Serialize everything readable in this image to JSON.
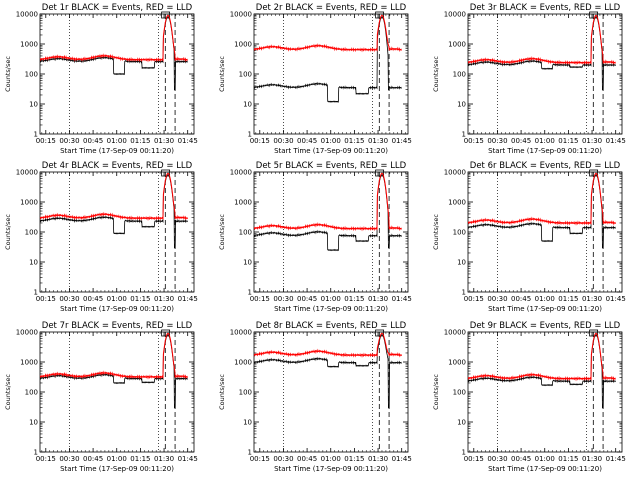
{
  "figure": {
    "bg": "#ffffff",
    "axis_color": "#000000",
    "events_color": "#000000",
    "lld_color": "#ff0000"
  },
  "chart_data": [
    {
      "type": "line",
      "title": "Det 1r  BLACK = Events, RED = LLD",
      "xlabel": "Start Time (17-Sep-09 00:11:20)",
      "ylabel": "Counts/sec",
      "xlim_min": [
        11.33,
        109.0
      ],
      "ylim": [
        1,
        10000
      ],
      "yscale": "log",
      "xtick_minutes": [
        15,
        30,
        45,
        60,
        75,
        90,
        105
      ],
      "xtick_labels": [
        "00:15",
        "00:30",
        "00:45",
        "01:00",
        "01:15",
        "01:30",
        "01:45"
      ],
      "ytick_values": [
        1,
        10,
        100,
        1000,
        10000
      ],
      "ytick_labels": [
        "1",
        "10",
        "100",
        "1000",
        "10000"
      ],
      "vlines_dotted_min": [
        30,
        86.5
      ],
      "vlines_dashed_min": [
        90.8,
        97
      ],
      "marker_box_min": 91,
      "marker_value": 10000,
      "series": [
        {
          "name": "Events",
          "baseline": 260,
          "dips": [
            [
              58,
              65,
              100
            ],
            [
              76,
              84,
              160
            ]
          ]
        },
        {
          "name": "LLD",
          "baseline": 300,
          "dips": []
        }
      ]
    },
    {
      "type": "line",
      "title": "Det 2r  BLACK = Events, RED = LLD",
      "xlabel": "Start Time (17-Sep-09 00:11:20)",
      "ylabel": "Counts/sec",
      "xlim_min": [
        11.33,
        109.0
      ],
      "ylim": [
        1,
        10000
      ],
      "yscale": "log",
      "xtick_minutes": [
        15,
        30,
        45,
        60,
        75,
        90,
        105
      ],
      "xtick_labels": [
        "00:15",
        "00:30",
        "00:45",
        "01:00",
        "01:15",
        "01:30",
        "01:45"
      ],
      "ytick_values": [
        1,
        10,
        100,
        1000,
        10000
      ],
      "ytick_labels": [
        "1",
        "10",
        "100",
        "1000",
        "10000"
      ],
      "vlines_dotted_min": [
        30,
        86.5
      ],
      "vlines_dashed_min": [
        90.8,
        97
      ],
      "marker_box_min": 91,
      "marker_value": 10000,
      "series": [
        {
          "name": "Events",
          "baseline": 35,
          "dips": [
            [
              58,
              65,
              12
            ],
            [
              76,
              84,
              22
            ]
          ]
        },
        {
          "name": "LLD",
          "baseline": 650,
          "dips": []
        }
      ]
    },
    {
      "type": "line",
      "title": "Det 3r  BLACK = Events, RED = LLD",
      "xlabel": "Start Time (17-Sep-09 00:11:20)",
      "ylabel": "Counts/sec",
      "xlim_min": [
        11.33,
        109.0
      ],
      "ylim": [
        1,
        10000
      ],
      "yscale": "log",
      "xtick_minutes": [
        15,
        30,
        45,
        60,
        75,
        90,
        105
      ],
      "xtick_labels": [
        "00:15",
        "00:30",
        "00:45",
        "01:00",
        "01:15",
        "01:30",
        "01:45"
      ],
      "ytick_values": [
        1,
        10,
        100,
        1000,
        10000
      ],
      "ytick_labels": [
        "1",
        "10",
        "100",
        "1000",
        "10000"
      ],
      "vlines_dotted_min": [
        30,
        86.5
      ],
      "vlines_dashed_min": [
        90.8,
        97
      ],
      "marker_box_min": 91,
      "marker_value": 10000,
      "series": [
        {
          "name": "Events",
          "baseline": 200,
          "dips": [
            [
              58,
              65,
              150
            ],
            [
              76,
              84,
              170
            ]
          ]
        },
        {
          "name": "LLD",
          "baseline": 240,
          "dips": []
        }
      ]
    },
    {
      "type": "line",
      "title": "Det 4r  BLACK = Events, RED = LLD",
      "xlabel": "Start Time (17-Sep-09 00:11:20)",
      "ylabel": "Counts/sec",
      "xlim_min": [
        11.33,
        109.0
      ],
      "ylim": [
        1,
        10000
      ],
      "yscale": "log",
      "xtick_minutes": [
        15,
        30,
        45,
        60,
        75,
        90,
        105
      ],
      "xtick_labels": [
        "00:15",
        "00:30",
        "00:45",
        "01:00",
        "01:15",
        "01:30",
        "01:45"
      ],
      "ytick_values": [
        1,
        10,
        100,
        1000,
        10000
      ],
      "ytick_labels": [
        "1",
        "10",
        "100",
        "1000",
        "10000"
      ],
      "vlines_dotted_min": [
        30,
        86.5
      ],
      "vlines_dashed_min": [
        90.8,
        97
      ],
      "marker_box_min": 91,
      "marker_value": 10000,
      "series": [
        {
          "name": "Events",
          "baseline": 230,
          "dips": [
            [
              58,
              65,
              90
            ],
            [
              76,
              84,
              150
            ]
          ]
        },
        {
          "name": "LLD",
          "baseline": 290,
          "dips": []
        }
      ]
    },
    {
      "type": "line",
      "title": "Det 5r  BLACK = Events, RED = LLD",
      "xlabel": "Start Time (17-Sep-09 00:11:20)",
      "ylabel": "Counts/sec",
      "xlim_min": [
        11.33,
        109.0
      ],
      "ylim": [
        1,
        10000
      ],
      "yscale": "log",
      "xtick_minutes": [
        15,
        30,
        45,
        60,
        75,
        90,
        105
      ],
      "xtick_labels": [
        "00:15",
        "00:30",
        "00:45",
        "01:00",
        "01:15",
        "01:30",
        "01:45"
      ],
      "ytick_values": [
        1,
        10,
        100,
        1000,
        10000
      ],
      "ytick_labels": [
        "1",
        "10",
        "100",
        "1000",
        "10000"
      ],
      "vlines_dotted_min": [
        30,
        86.5
      ],
      "vlines_dashed_min": [
        90.8,
        97
      ],
      "marker_box_min": 91,
      "marker_value": 10000,
      "series": [
        {
          "name": "Events",
          "baseline": 75,
          "dips": [
            [
              58,
              65,
              25
            ],
            [
              76,
              84,
              50
            ]
          ]
        },
        {
          "name": "LLD",
          "baseline": 130,
          "dips": []
        }
      ]
    },
    {
      "type": "line",
      "title": "Det 6r  BLACK = Events, RED = LLD",
      "xlabel": "Start Time (17-Sep-09 00:11:20)",
      "ylabel": "Counts/sec",
      "xlim_min": [
        11.33,
        109.0
      ],
      "ylim": [
        1,
        10000
      ],
      "yscale": "log",
      "xtick_minutes": [
        15,
        30,
        45,
        60,
        75,
        90,
        105
      ],
      "xtick_labels": [
        "00:15",
        "00:30",
        "00:45",
        "01:00",
        "01:15",
        "01:30",
        "01:45"
      ],
      "ytick_values": [
        1,
        10,
        100,
        1000,
        10000
      ],
      "ytick_labels": [
        "1",
        "10",
        "100",
        "1000",
        "10000"
      ],
      "vlines_dotted_min": [
        30,
        86.5
      ],
      "vlines_dashed_min": [
        90.8,
        97
      ],
      "marker_box_min": 91,
      "marker_value": 10000,
      "series": [
        {
          "name": "Events",
          "baseline": 140,
          "dips": [
            [
              58,
              65,
              50
            ],
            [
              76,
              84,
              90
            ]
          ]
        },
        {
          "name": "LLD",
          "baseline": 200,
          "dips": []
        }
      ]
    },
    {
      "type": "line",
      "title": "Det 7r  BLACK = Events, RED = LLD",
      "xlabel": "Start Time (17-Sep-09 00:11:20)",
      "ylabel": "Counts/sec",
      "xlim_min": [
        11.33,
        109.0
      ],
      "ylim": [
        1,
        10000
      ],
      "yscale": "log",
      "xtick_minutes": [
        15,
        30,
        45,
        60,
        75,
        90,
        105
      ],
      "xtick_labels": [
        "00:15",
        "00:30",
        "00:45",
        "01:00",
        "01:15",
        "01:30",
        "01:45"
      ],
      "ytick_values": [
        1,
        10,
        100,
        1000,
        10000
      ],
      "ytick_labels": [
        "1",
        "10",
        "100",
        "1000",
        "10000"
      ],
      "vlines_dotted_min": [
        30,
        86.5
      ],
      "vlines_dashed_min": [
        90.8,
        97
      ],
      "marker_box_min": 91,
      "marker_value": 10000,
      "series": [
        {
          "name": "Events",
          "baseline": 280,
          "dips": [
            [
              58,
              65,
              200
            ],
            [
              76,
              84,
              210
            ]
          ]
        },
        {
          "name": "LLD",
          "baseline": 320,
          "dips": []
        }
      ]
    },
    {
      "type": "line",
      "title": "Det 8r  BLACK = Events, RED = LLD",
      "xlabel": "Start Time (17-Sep-09 00:11:20)",
      "ylabel": "Counts/sec",
      "xlim_min": [
        11.33,
        109.0
      ],
      "ylim": [
        1,
        10000
      ],
      "yscale": "log",
      "xtick_minutes": [
        15,
        30,
        45,
        60,
        75,
        90,
        105
      ],
      "xtick_labels": [
        "00:15",
        "00:30",
        "00:45",
        "01:00",
        "01:15",
        "01:30",
        "01:45"
      ],
      "ytick_values": [
        1,
        10,
        100,
        1000,
        10000
      ],
      "ytick_labels": [
        "1",
        "10",
        "100",
        "1000",
        "10000"
      ],
      "vlines_dotted_min": [
        30,
        86.5
      ],
      "vlines_dashed_min": [
        90.8,
        97
      ],
      "marker_box_min": 91,
      "marker_value": 10000,
      "series": [
        {
          "name": "Events",
          "baseline": 950,
          "dips": [
            [
              58,
              65,
              700
            ],
            [
              76,
              84,
              750
            ]
          ]
        },
        {
          "name": "LLD",
          "baseline": 1700,
          "dips": []
        }
      ]
    },
    {
      "type": "line",
      "title": "Det 9r  BLACK = Events, RED = LLD",
      "xlabel": "Start Time (17-Sep-09 00:11:20)",
      "ylabel": "Counts/sec",
      "xlim_min": [
        11.33,
        109.0
      ],
      "ylim": [
        1,
        10000
      ],
      "yscale": "log",
      "xtick_minutes": [
        15,
        30,
        45,
        60,
        75,
        90,
        105
      ],
      "xtick_labels": [
        "00:15",
        "00:30",
        "00:45",
        "01:00",
        "01:15",
        "01:30",
        "01:45"
      ],
      "ytick_values": [
        1,
        10,
        100,
        1000,
        10000
      ],
      "ytick_labels": [
        "1",
        "10",
        "100",
        "1000",
        "10000"
      ],
      "vlines_dotted_min": [
        30,
        86.5
      ],
      "vlines_dashed_min": [
        90.8,
        97
      ],
      "marker_box_min": 91,
      "marker_value": 10000,
      "series": [
        {
          "name": "Events",
          "baseline": 230,
          "dips": [
            [
              58,
              65,
              170
            ],
            [
              76,
              84,
              180
            ]
          ]
        },
        {
          "name": "LLD",
          "baseline": 280,
          "dips": []
        }
      ]
    }
  ]
}
